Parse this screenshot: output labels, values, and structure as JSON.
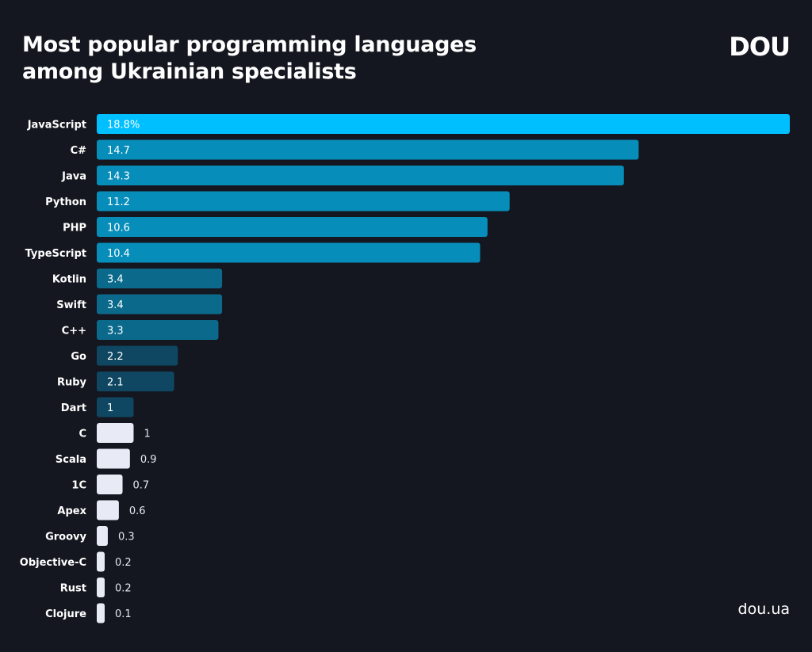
{
  "title_line1": "Most popular programming languages",
  "title_line2": "among Ukrainian specialists",
  "logo": "DOU",
  "site": "dou.ua",
  "colors": {
    "background": "#14171f",
    "tier1": "#00bfff",
    "tier2": "#078db9",
    "tier3": "#0b6a8b",
    "tier4": "#0f4762",
    "tier5": "#e8eaf6"
  },
  "chart_data": {
    "type": "bar",
    "orientation": "horizontal",
    "unit_suffix_first": "%",
    "categories": [
      "JavaScript",
      "C#",
      "Java",
      "Python",
      "PHP",
      "TypeScript",
      "Kotlin",
      "Swift",
      "C++",
      "Go",
      "Ruby",
      "Dart",
      "C",
      "Scala",
      "1C",
      "Apex",
      "Groovy",
      "Objective-C",
      "Rust",
      "Clojure"
    ],
    "values": [
      18.8,
      14.7,
      14.3,
      11.2,
      10.6,
      10.4,
      3.4,
      3.4,
      3.3,
      2.2,
      2.1,
      1,
      1,
      0.9,
      0.7,
      0.6,
      0.3,
      0.2,
      0.2,
      0.1
    ],
    "value_labels": [
      "18.8%",
      "14.7",
      "14.3",
      "11.2",
      "10.6",
      "10.4",
      "3.4",
      "3.4",
      "3.3",
      "2.2",
      "2.1",
      "1",
      "1",
      "0.9",
      "0.7",
      "0.6",
      "0.3",
      "0.2",
      "0.2",
      "0.1"
    ],
    "color_tiers": [
      1,
      2,
      2,
      2,
      2,
      2,
      3,
      3,
      3,
      4,
      4,
      4,
      5,
      5,
      5,
      5,
      5,
      5,
      5,
      5
    ],
    "grid": false,
    "legend": "none"
  }
}
